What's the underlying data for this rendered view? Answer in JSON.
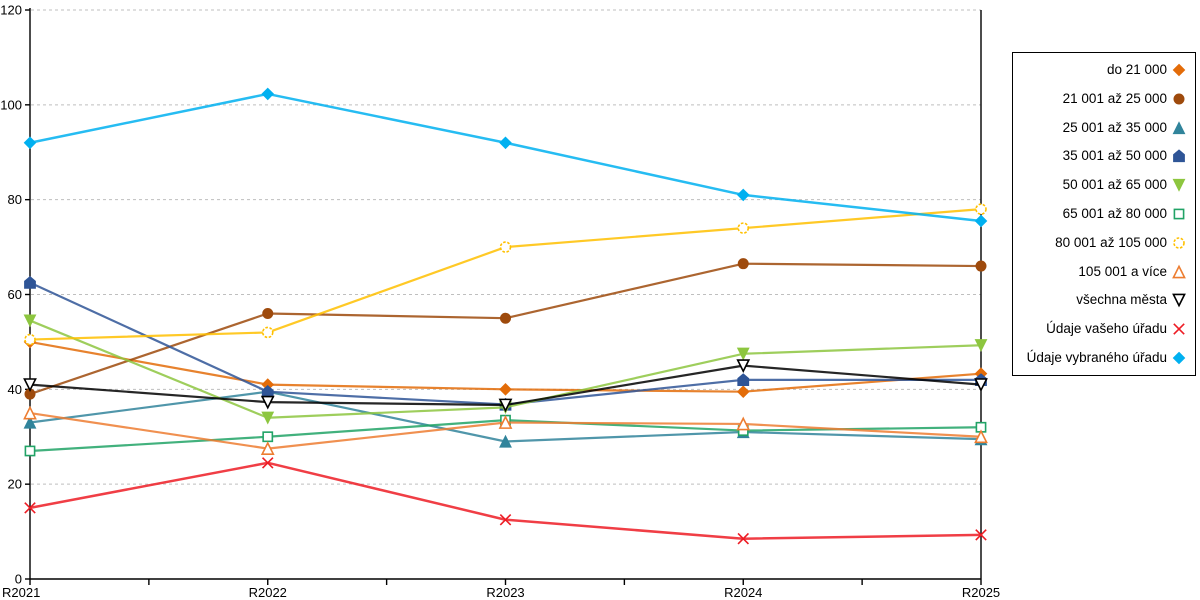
{
  "chart_data": {
    "type": "line",
    "title": "",
    "xlabel": "",
    "ylabel": "",
    "categories": [
      "R2021",
      "R2022",
      "R2023",
      "R2024",
      "R2025"
    ],
    "y_ticks": [
      0,
      20,
      40,
      60,
      80,
      100,
      120
    ],
    "ylim": [
      0,
      120
    ],
    "grid": "horizontal-dashed",
    "legend_position": "right-outside",
    "series": [
      {
        "name": "do 21 000",
        "color": "#E36C09",
        "marker": "diamond",
        "filled": true,
        "values": [
          50,
          41,
          40,
          39.5,
          43.3
        ]
      },
      {
        "name": "21 001 až 25 000",
        "color": "#9E4A0C",
        "marker": "circle",
        "filled": true,
        "values": [
          39,
          56,
          55,
          66.5,
          66
        ]
      },
      {
        "name": "25 001 až 35 000",
        "color": "#31849B",
        "marker": "triangle-up",
        "filled": true,
        "values": [
          33,
          39.5,
          29,
          31,
          29.5
        ]
      },
      {
        "name": "35 001 až 50 000",
        "color": "#2F5597",
        "marker": "pentagon",
        "filled": true,
        "values": [
          62.5,
          39.5,
          36.8,
          42,
          42
        ]
      },
      {
        "name": "50 001 až 65 000",
        "color": "#8DC63F",
        "marker": "triangle-down",
        "filled": true,
        "values": [
          54.5,
          34,
          36.2,
          47.5,
          49.3
        ]
      },
      {
        "name": "65 001 až 80 000",
        "color": "#21A366",
        "marker": "square",
        "filled": false,
        "values": [
          27,
          30,
          33.5,
          31.3,
          32
        ]
      },
      {
        "name": "80 001 až 105 000",
        "color": "#FFC000",
        "marker": "circle-dashed",
        "filled": false,
        "values": [
          50.5,
          52,
          70,
          74,
          78
        ]
      },
      {
        "name": "105 001 a více",
        "color": "#ED7D31",
        "marker": "triangle-up",
        "filled": false,
        "values": [
          35,
          27.5,
          33,
          32.7,
          30
        ]
      },
      {
        "name": "všechna města",
        "color": "#000000",
        "marker": "triangle-down",
        "filled": false,
        "values": [
          41,
          37.3,
          36.7,
          45,
          41
        ]
      },
      {
        "name": "Údaje vašeho úřadu",
        "color": "#ED1C24",
        "marker": "x",
        "filled": false,
        "values": [
          15,
          24.5,
          12.5,
          8.5,
          9.3
        ]
      },
      {
        "name": "Údaje vybraného úřadu",
        "color": "#00B0F0",
        "marker": "diamond",
        "filled": true,
        "values": [
          92,
          102.3,
          92,
          81,
          75.5
        ]
      }
    ],
    "axis_color": "#000000",
    "gridline_color": "#BFBFBF",
    "label_color": "#000000"
  }
}
